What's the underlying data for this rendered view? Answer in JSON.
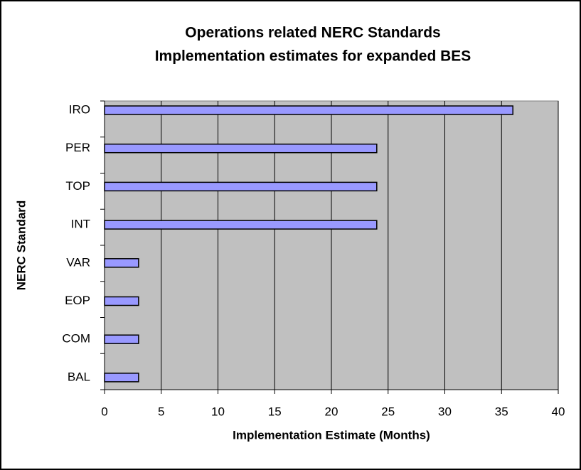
{
  "chart_data": {
    "type": "bar",
    "orientation": "horizontal",
    "title": [
      "Operations related NERC Standards",
      "Implementation estimates for expanded BES"
    ],
    "x_label": "Implementation Estimate (Months)",
    "y_label": "NERC Standard",
    "categories": [
      "IRO",
      "PER",
      "TOP",
      "INT",
      "VAR",
      "EOP",
      "COM",
      "BAL"
    ],
    "values": [
      36,
      24,
      24,
      24,
      3,
      3,
      3,
      3
    ],
    "color": "#9999ff",
    "xlim": [
      0,
      40
    ],
    "xticks": [
      0,
      5,
      10,
      15,
      20,
      25,
      30,
      35,
      40
    ],
    "grid": true
  }
}
